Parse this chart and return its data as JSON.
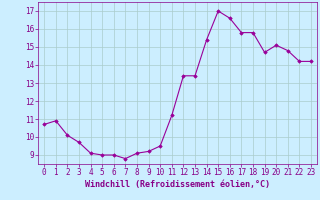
{
  "x": [
    0,
    1,
    2,
    3,
    4,
    5,
    6,
    7,
    8,
    9,
    10,
    11,
    12,
    13,
    14,
    15,
    16,
    17,
    18,
    19,
    20,
    21,
    22,
    23
  ],
  "y": [
    10.7,
    10.9,
    10.1,
    9.7,
    9.1,
    9.0,
    9.0,
    8.8,
    9.1,
    9.2,
    9.5,
    11.2,
    13.4,
    13.4,
    15.4,
    17.0,
    16.6,
    15.8,
    15.8,
    14.7,
    15.1,
    14.8,
    14.2,
    14.2
  ],
  "line_color": "#990099",
  "marker": "D",
  "marker_size": 1.8,
  "line_width": 0.8,
  "bg_color": "#cceeff",
  "grid_color": "#aacccc",
  "xlabel": "Windchill (Refroidissement éolien,°C)",
  "xlabel_fontsize": 6.0,
  "ylim": [
    8.5,
    17.5
  ],
  "xlim": [
    -0.5,
    23.5
  ],
  "yticks": [
    9,
    10,
    11,
    12,
    13,
    14,
    15,
    16,
    17
  ],
  "xticks": [
    0,
    1,
    2,
    3,
    4,
    5,
    6,
    7,
    8,
    9,
    10,
    11,
    12,
    13,
    14,
    15,
    16,
    17,
    18,
    19,
    20,
    21,
    22,
    23
  ],
  "tick_fontsize": 5.5,
  "tick_color": "#880088",
  "xlabel_color": "#880088"
}
